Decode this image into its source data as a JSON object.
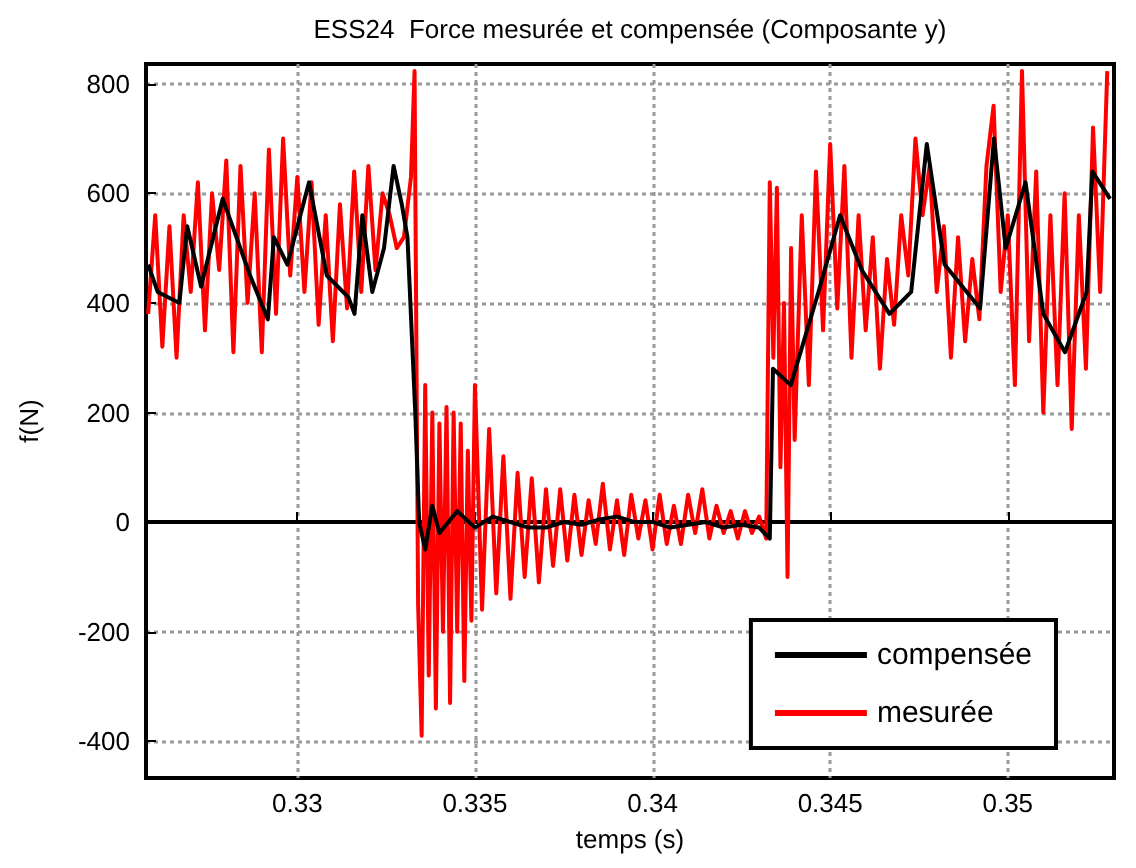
{
  "chart_data": {
    "type": "line",
    "title": "ESS24  Force mesurée et compensée (Composante y)",
    "xlabel": "temps (s)",
    "ylabel": "f(N)",
    "xlim": [
      0.32574,
      0.35299
    ],
    "xticks": [
      0.33,
      0.335,
      0.34,
      0.345,
      0.35
    ],
    "ylim": [
      -467,
      836
    ],
    "yticks": [
      -400,
      -200,
      0,
      200,
      400,
      600,
      800
    ],
    "grid": true,
    "legend": "bottom right",
    "marker": "none",
    "line_style": "solid",
    "series": [
      {
        "name": "compensée",
        "color": "#000000",
        "x": [
          0.3258,
          0.32607,
          0.32668,
          0.3269,
          0.32729,
          0.3279,
          0.32867,
          0.32917,
          0.32934,
          0.32972,
          0.33033,
          0.33083,
          0.33144,
          0.33161,
          0.33183,
          0.33211,
          0.33244,
          0.33271,
          0.33294,
          0.3331,
          0.33332,
          0.33343,
          0.3336,
          0.3338,
          0.334,
          0.3345,
          0.335,
          0.3355,
          0.336,
          0.3365,
          0.337,
          0.3375,
          0.338,
          0.3385,
          0.339,
          0.3395,
          0.34,
          0.3405,
          0.341,
          0.3415,
          0.342,
          0.3425,
          0.343,
          0.3433,
          0.34339,
          0.34389,
          0.34467,
          0.34528,
          0.34589,
          0.34667,
          0.34728,
          0.34772,
          0.34822,
          0.34922,
          0.34961,
          0.34994,
          0.3505,
          0.351,
          0.35161,
          0.35222,
          0.35238,
          0.35288
        ],
        "values": [
          470,
          420,
          400,
          540,
          430,
          590,
          450,
          370,
          520,
          470,
          620,
          450,
          410,
          380,
          560,
          420,
          500,
          650,
          580,
          520,
          200,
          0,
          -50,
          30,
          -20,
          20,
          -10,
          10,
          0,
          -10,
          -10,
          0,
          -5,
          5,
          10,
          0,
          0,
          -10,
          -5,
          0,
          -10,
          -5,
          -10,
          -30,
          280,
          250,
          420,
          560,
          460,
          380,
          420,
          690,
          470,
          390,
          700,
          500,
          620,
          380,
          310,
          420,
          640,
          590
        ]
      },
      {
        "name": "mesurée",
        "color": "#ff0000",
        "x": [
          0.3258,
          0.326,
          0.3262,
          0.3264,
          0.3266,
          0.3268,
          0.327,
          0.3272,
          0.3274,
          0.3276,
          0.3278,
          0.328,
          0.3282,
          0.3284,
          0.3286,
          0.3288,
          0.329,
          0.3292,
          0.3294,
          0.3296,
          0.3298,
          0.33,
          0.3302,
          0.3304,
          0.3306,
          0.3308,
          0.331,
          0.3312,
          0.3314,
          0.3316,
          0.3318,
          0.332,
          0.3322,
          0.3324,
          0.3326,
          0.3328,
          0.333,
          0.3332,
          0.3333,
          0.3334,
          0.3335,
          0.3336,
          0.3337,
          0.3338,
          0.3339,
          0.334,
          0.3341,
          0.3342,
          0.3343,
          0.3344,
          0.3345,
          0.3346,
          0.3347,
          0.3348,
          0.3349,
          0.335,
          0.3352,
          0.3354,
          0.3356,
          0.3358,
          0.336,
          0.3362,
          0.3364,
          0.3366,
          0.3368,
          0.337,
          0.3372,
          0.3374,
          0.3376,
          0.3378,
          0.338,
          0.3382,
          0.3384,
          0.3386,
          0.3388,
          0.339,
          0.3392,
          0.3394,
          0.3396,
          0.3398,
          0.34,
          0.3402,
          0.3404,
          0.3406,
          0.3408,
          0.341,
          0.3412,
          0.3414,
          0.3416,
          0.3418,
          0.342,
          0.3422,
          0.3424,
          0.3426,
          0.3428,
          0.343,
          0.3432,
          0.3433,
          0.3434,
          0.3435,
          0.3436,
          0.3437,
          0.3438,
          0.3439,
          0.344,
          0.3442,
          0.3444,
          0.3446,
          0.3448,
          0.345,
          0.3452,
          0.3454,
          0.3456,
          0.3458,
          0.346,
          0.3462,
          0.3464,
          0.3466,
          0.3468,
          0.347,
          0.3472,
          0.3474,
          0.3476,
          0.3478,
          0.348,
          0.3482,
          0.3484,
          0.3486,
          0.3488,
          0.349,
          0.3492,
          0.3494,
          0.3496,
          0.3498,
          0.35,
          0.3502,
          0.3504,
          0.3506,
          0.3508,
          0.351,
          0.3512,
          0.3514,
          0.3516,
          0.3518,
          0.352,
          0.3522,
          0.3524,
          0.3526,
          0.3528
        ],
        "values": [
          380,
          560,
          320,
          540,
          300,
          560,
          420,
          620,
          350,
          600,
          460,
          660,
          310,
          650,
          400,
          600,
          310,
          680,
          380,
          700,
          450,
          630,
          420,
          620,
          360,
          560,
          330,
          580,
          390,
          640,
          420,
          650,
          460,
          600,
          560,
          500,
          520,
          630,
          823,
          -150,
          -390,
          250,
          -280,
          200,
          -340,
          180,
          -200,
          210,
          -330,
          200,
          -200,
          180,
          -290,
          130,
          -180,
          250,
          -160,
          170,
          -130,
          120,
          -140,
          90,
          -100,
          80,
          -110,
          60,
          -80,
          60,
          -70,
          50,
          -60,
          40,
          -40,
          70,
          -50,
          40,
          -60,
          50,
          -30,
          40,
          -50,
          50,
          -40,
          30,
          -40,
          50,
          -20,
          60,
          -30,
          30,
          -20,
          20,
          -30,
          20,
          -20,
          10,
          -30,
          620,
          300,
          610,
          100,
          400,
          -100,
          500,
          150,
          560,
          250,
          640,
          350,
          690,
          390,
          650,
          300,
          560,
          350,
          520,
          280,
          480,
          360,
          560,
          450,
          700,
          560,
          650,
          420,
          540,
          300,
          520,
          330,
          480,
          370,
          650,
          760,
          420,
          560,
          250,
          823,
          330,
          640,
          200,
          560,
          250,
          600,
          170,
          560,
          280,
          720,
          420,
          823
        ]
      }
    ]
  }
}
